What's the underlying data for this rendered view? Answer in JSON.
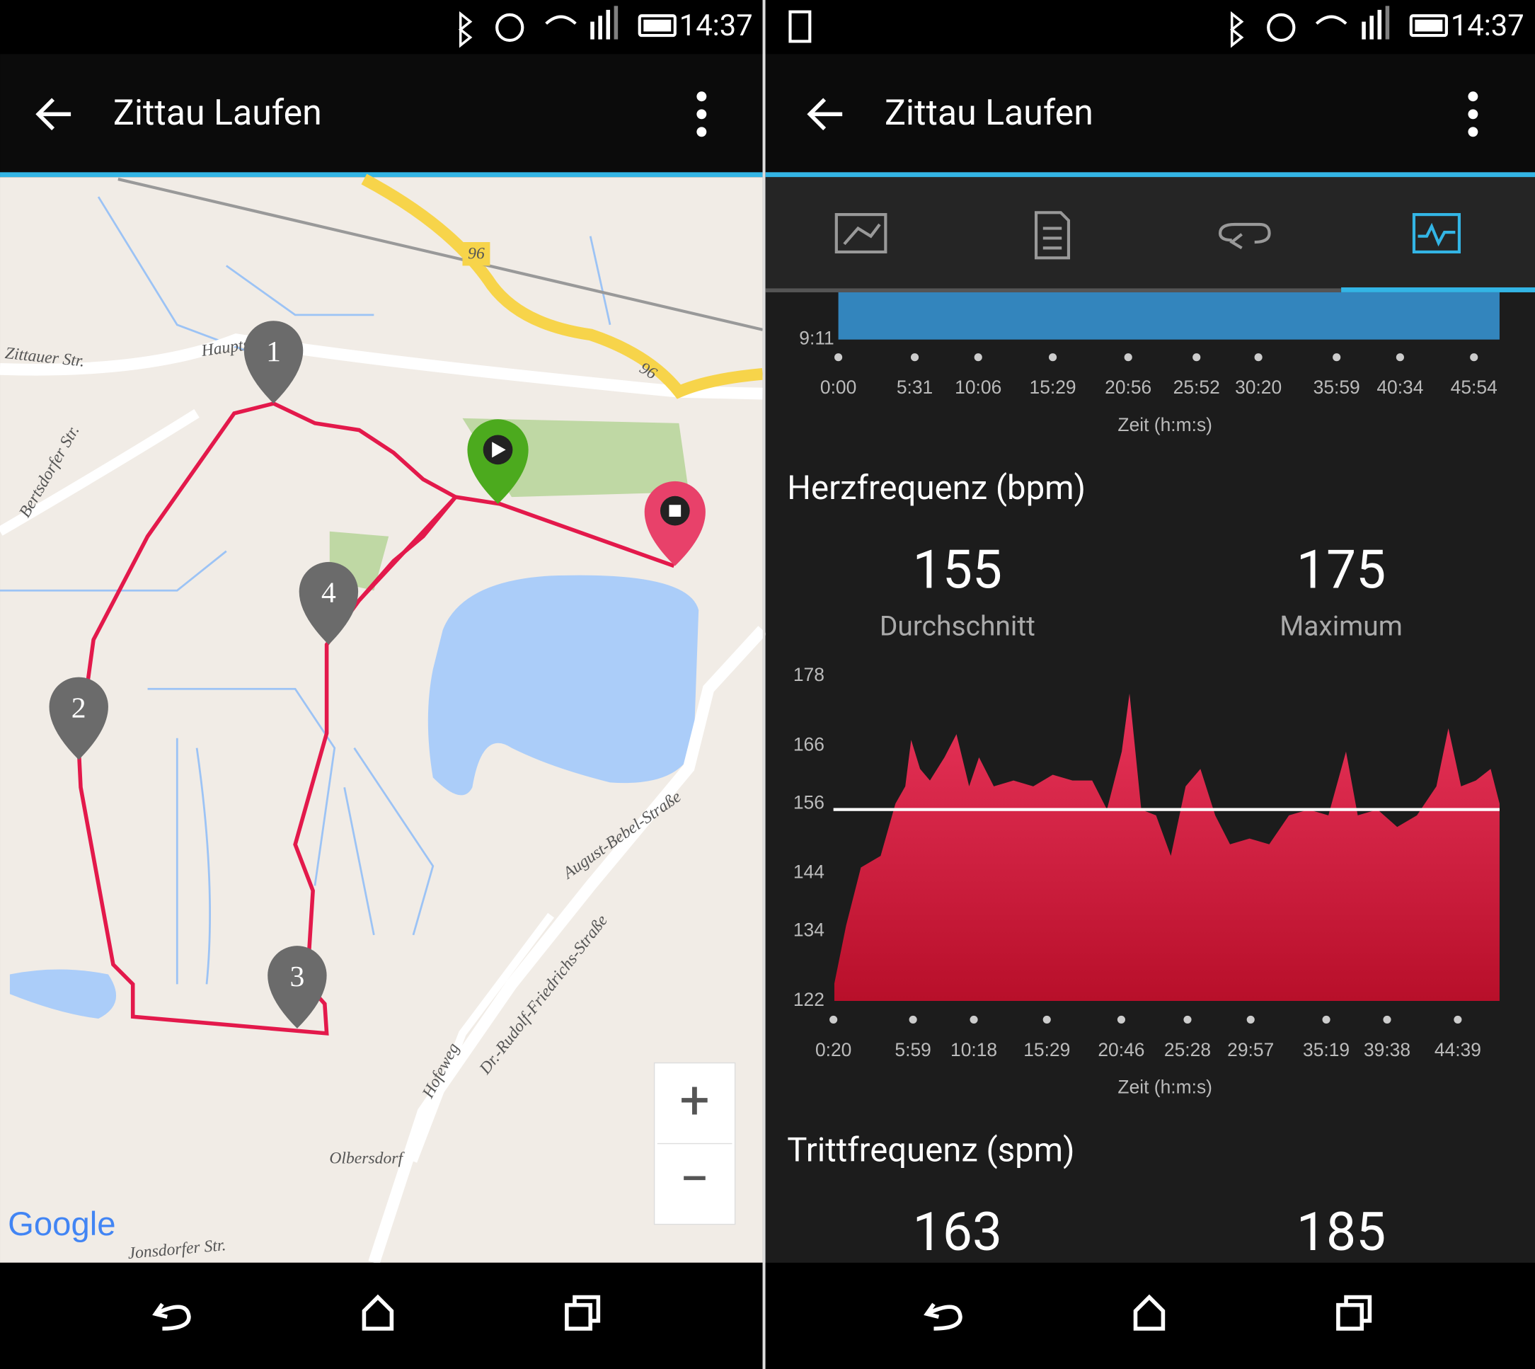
{
  "status_bar": {
    "time": [
      "14:37",
      "14:37"
    ]
  },
  "app_bar": {
    "title": [
      "Zittau Laufen",
      "Zittau Laufen"
    ]
  },
  "map": {
    "streets": [
      "Zittauer Str.",
      "Hauptstr",
      "Bertsdorfer Str.",
      "August-Bebel-Straße",
      "Dr.-Rudolf-Friedrichs-Straße",
      "Hofeweg",
      "Jonsdorfer Str."
    ],
    "road_number": [
      "96",
      "96"
    ],
    "place": "Olbersdorf",
    "laps": [
      "1",
      "2",
      "3",
      "4"
    ],
    "attribution": "Google",
    "zoom_in": "+",
    "zoom_out": "−"
  },
  "chart_data": [
    {
      "type": "area",
      "y_label": "9:11",
      "x_label": "Zeit (h:m:s)",
      "color": "#3385bd",
      "xlim": [
        0,
        2865
      ],
      "xticks": [
        {
          "value": 0,
          "label": "0:00"
        },
        {
          "value": 331,
          "label": "5:31"
        },
        {
          "value": 606,
          "label": "10:06"
        },
        {
          "value": 929,
          "label": "15:29"
        },
        {
          "value": 1256,
          "label": "20:56"
        },
        {
          "value": 1552,
          "label": "25:52"
        },
        {
          "value": 1820,
          "label": "30:20"
        },
        {
          "value": 2159,
          "label": "35:59"
        },
        {
          "value": 2434,
          "label": "40:34"
        },
        {
          "value": 2754,
          "label": "45:54"
        }
      ]
    },
    {
      "type": "area",
      "title": "Herzfrequenz (bpm)",
      "x_label": "Zeit (h:m:s)",
      "color": "#d2143a",
      "average": 155,
      "average_label": "Durchschnitt",
      "maximum": 175,
      "maximum_label": "Maximum",
      "x": [
        24,
        74,
        137,
        221,
        284,
        326,
        351,
        389,
        431,
        493,
        544,
        598,
        640,
        703,
        787,
        871,
        954,
        1038,
        1122,
        1185,
        1248,
        1281,
        1331,
        1394,
        1457,
        1520,
        1583,
        1646,
        1709,
        1792,
        1876,
        1960,
        2044,
        2128,
        2203,
        2253,
        2337,
        2421,
        2505,
        2588,
        2639,
        2693,
        2756,
        2819,
        2857
      ],
      "values": [
        125,
        135,
        145,
        147,
        156,
        159,
        167,
        162,
        160,
        164,
        168,
        159,
        164,
        159,
        160,
        159,
        161,
        160,
        160,
        155,
        165,
        175,
        155,
        154,
        147,
        159,
        162,
        154,
        149,
        150,
        149,
        154,
        155,
        154,
        165,
        154,
        155,
        152,
        154,
        159,
        169,
        159,
        160,
        162,
        156
      ],
      "xlim": [
        20,
        2857
      ],
      "ylim": [
        122,
        178
      ],
      "xticks": [
        {
          "value": 20,
          "label": "0:20"
        },
        {
          "value": 359,
          "label": "5:59"
        },
        {
          "value": 618,
          "label": "10:18"
        },
        {
          "value": 929,
          "label": "15:29"
        },
        {
          "value": 1246,
          "label": "20:46"
        },
        {
          "value": 1528,
          "label": "25:28"
        },
        {
          "value": 1797,
          "label": "29:57"
        },
        {
          "value": 2119,
          "label": "35:19"
        },
        {
          "value": 2378,
          "label": "39:38"
        },
        {
          "value": 2679,
          "label": "44:39"
        }
      ],
      "yticks": [
        122,
        134,
        144,
        156,
        166,
        178
      ]
    }
  ],
  "cadence": {
    "title": "Trittfrequenz (spm)",
    "average": 163,
    "maximum": 185
  }
}
